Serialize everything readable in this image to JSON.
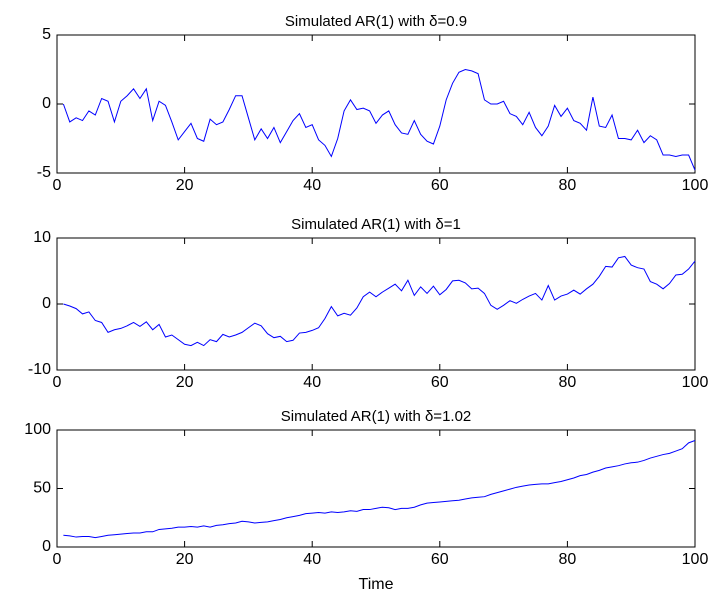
{
  "chart_data": [
    {
      "type": "line",
      "title": "Simulated AR(1) with δ=0.9",
      "x": [
        1,
        2,
        3,
        4,
        5,
        6,
        7,
        8,
        9,
        10,
        11,
        12,
        13,
        14,
        15,
        16,
        17,
        18,
        19,
        20,
        21,
        22,
        23,
        24,
        25,
        26,
        27,
        28,
        29,
        30,
        31,
        32,
        33,
        34,
        35,
        36,
        37,
        38,
        39,
        40,
        41,
        42,
        43,
        44,
        45,
        46,
        47,
        48,
        49,
        50,
        51,
        52,
        53,
        54,
        55,
        56,
        57,
        58,
        59,
        60,
        61,
        62,
        63,
        64,
        65,
        66,
        67,
        68,
        69,
        70,
        71,
        72,
        73,
        74,
        75,
        76,
        77,
        78,
        79,
        80,
        81,
        82,
        83,
        84,
        85,
        86,
        87,
        88,
        89,
        90,
        91,
        92,
        93,
        94,
        95,
        96,
        97,
        98,
        99,
        100
      ],
      "series": [
        {
          "color": "#0000ff",
          "values": [
            0,
            -1.3,
            -1.0,
            -1.2,
            -0.5,
            -0.8,
            0.4,
            0.2,
            -1.3,
            0.2,
            0.6,
            1.1,
            0.4,
            1.1,
            -1.2,
            0.2,
            -0.1,
            -1.3,
            -2.6,
            -2.0,
            -1.4,
            -2.5,
            -2.7,
            -1.1,
            -1.5,
            -1.3,
            -0.4,
            0.6,
            0.6,
            -1.0,
            -2.6,
            -1.8,
            -2.5,
            -1.7,
            -2.8,
            -2.0,
            -1.2,
            -0.7,
            -1.7,
            -1.5,
            -2.6,
            -3.0,
            -3.8,
            -2.5,
            -0.5,
            0.3,
            -0.4,
            -0.3,
            -0.5,
            -1.4,
            -0.8,
            -0.5,
            -1.5,
            -2.1,
            -2.2,
            -1.2,
            -2.2,
            -2.7,
            -2.9,
            -1.6,
            0.3,
            1.5,
            2.3,
            2.5,
            2.4,
            2.2,
            0.3,
            0.0,
            0.0,
            0.2,
            -0.7,
            -0.9,
            -1.5,
            -0.6,
            -1.7,
            -2.3,
            -1.6,
            -0.1,
            -0.9,
            -0.3,
            -1.2,
            -1.4,
            -1.9,
            0.5,
            -1.6,
            -1.7,
            -0.8,
            -2.5,
            -2.5,
            -2.6,
            -1.9,
            -2.8,
            -2.3,
            -2.6,
            -3.7,
            -3.7,
            -3.8,
            -3.7,
            -3.7,
            -4.8
          ]
        }
      ],
      "xlim": [
        0,
        100
      ],
      "xticks": [
        0,
        20,
        40,
        60,
        80,
        100
      ],
      "ylim": [
        -5,
        5
      ],
      "yticks": [
        -5,
        0,
        5
      ]
    },
    {
      "type": "line",
      "title": "Simulated AR(1) with δ=1",
      "x": [
        1,
        2,
        3,
        4,
        5,
        6,
        7,
        8,
        9,
        10,
        11,
        12,
        13,
        14,
        15,
        16,
        17,
        18,
        19,
        20,
        21,
        22,
        23,
        24,
        25,
        26,
        27,
        28,
        29,
        30,
        31,
        32,
        33,
        34,
        35,
        36,
        37,
        38,
        39,
        40,
        41,
        42,
        43,
        44,
        45,
        46,
        47,
        48,
        49,
        50,
        51,
        52,
        53,
        54,
        55,
        56,
        57,
        58,
        59,
        60,
        61,
        62,
        63,
        64,
        65,
        66,
        67,
        68,
        69,
        70,
        71,
        72,
        73,
        74,
        75,
        76,
        77,
        78,
        79,
        80,
        81,
        82,
        83,
        84,
        85,
        86,
        87,
        88,
        89,
        90,
        91,
        92,
        93,
        94,
        95,
        96,
        97,
        98,
        99,
        100
      ],
      "series": [
        {
          "color": "#0000ff",
          "values": [
            0,
            -0.3,
            -0.7,
            -1.5,
            -1.2,
            -2.5,
            -2.8,
            -4.3,
            -3.9,
            -3.7,
            -3.3,
            -2.8,
            -3.4,
            -2.7,
            -3.9,
            -3.1,
            -5.0,
            -4.7,
            -5.4,
            -6.1,
            -6.3,
            -5.8,
            -6.3,
            -5.4,
            -5.7,
            -4.6,
            -5.0,
            -4.7,
            -4.3,
            -3.6,
            -2.9,
            -3.3,
            -4.5,
            -5.1,
            -4.9,
            -5.7,
            -5.5,
            -4.4,
            -4.3,
            -4.0,
            -3.6,
            -2.2,
            -0.4,
            -1.8,
            -1.4,
            -1.7,
            -0.6,
            1.1,
            1.8,
            1.1,
            1.8,
            2.4,
            3.0,
            2.0,
            3.6,
            1.3,
            2.6,
            1.6,
            2.7,
            1.4,
            2.2,
            3.5,
            3.6,
            3.2,
            2.3,
            2.4,
            1.6,
            -0.2,
            -0.8,
            -0.2,
            0.5,
            0.1,
            0.7,
            1.2,
            1.6,
            0.6,
            2.8,
            0.6,
            1.2,
            1.5,
            2.1,
            1.5,
            2.3,
            3.0,
            4.2,
            5.7,
            5.6,
            7.0,
            7.2,
            5.9,
            5.5,
            5.3,
            3.4,
            3.0,
            2.3,
            3.1,
            4.4,
            4.5,
            5.3,
            6.5
          ]
        }
      ],
      "xlim": [
        0,
        100
      ],
      "xticks": [
        0,
        20,
        40,
        60,
        80,
        100
      ],
      "ylim": [
        -10,
        10
      ],
      "yticks": [
        -10,
        0,
        10
      ]
    },
    {
      "type": "line",
      "title": "Simulated AR(1) with δ=1.02",
      "xlabel": "Time",
      "x": [
        1,
        2,
        3,
        4,
        5,
        6,
        7,
        8,
        9,
        10,
        11,
        12,
        13,
        14,
        15,
        16,
        17,
        18,
        19,
        20,
        21,
        22,
        23,
        24,
        25,
        26,
        27,
        28,
        29,
        30,
        31,
        32,
        33,
        34,
        35,
        36,
        37,
        38,
        39,
        40,
        41,
        42,
        43,
        44,
        45,
        46,
        47,
        48,
        49,
        50,
        51,
        52,
        53,
        54,
        55,
        56,
        57,
        58,
        59,
        60,
        61,
        62,
        63,
        64,
        65,
        66,
        67,
        68,
        69,
        70,
        71,
        72,
        73,
        74,
        75,
        76,
        77,
        78,
        79,
        80,
        81,
        82,
        83,
        84,
        85,
        86,
        87,
        88,
        89,
        90,
        91,
        92,
        93,
        94,
        95,
        96,
        97,
        98,
        99,
        100
      ],
      "series": [
        {
          "color": "#0000ff",
          "values": [
            10,
            9.5,
            8.5,
            9,
            9,
            8,
            9,
            10,
            10.5,
            11,
            11.5,
            12,
            12,
            13,
            13,
            15,
            15.5,
            16,
            17,
            17,
            17.5,
            17,
            18,
            17,
            18.5,
            19,
            20,
            20.5,
            22,
            21.5,
            20.5,
            21,
            21.5,
            22.5,
            23.5,
            25,
            26,
            27,
            28.5,
            29,
            29.5,
            29,
            30,
            29.5,
            30,
            31,
            30.5,
            32,
            32,
            33,
            34,
            33.5,
            32,
            33,
            33,
            34,
            36,
            37.5,
            38,
            38.5,
            39,
            39.5,
            40,
            41,
            42,
            42.5,
            43,
            45,
            46.5,
            48,
            49.5,
            51,
            52,
            53,
            53.5,
            54,
            54,
            55,
            56,
            57.5,
            59,
            61,
            62,
            64,
            65.5,
            67.5,
            68.5,
            69.5,
            71,
            72,
            72.5,
            74,
            76,
            77.5,
            79,
            80,
            82,
            84,
            89,
            91
          ]
        }
      ],
      "xlim": [
        0,
        100
      ],
      "xticks": [
        0,
        20,
        40,
        60,
        80,
        100
      ],
      "ylim": [
        0,
        100
      ],
      "yticks": [
        0,
        50,
        100
      ]
    }
  ]
}
